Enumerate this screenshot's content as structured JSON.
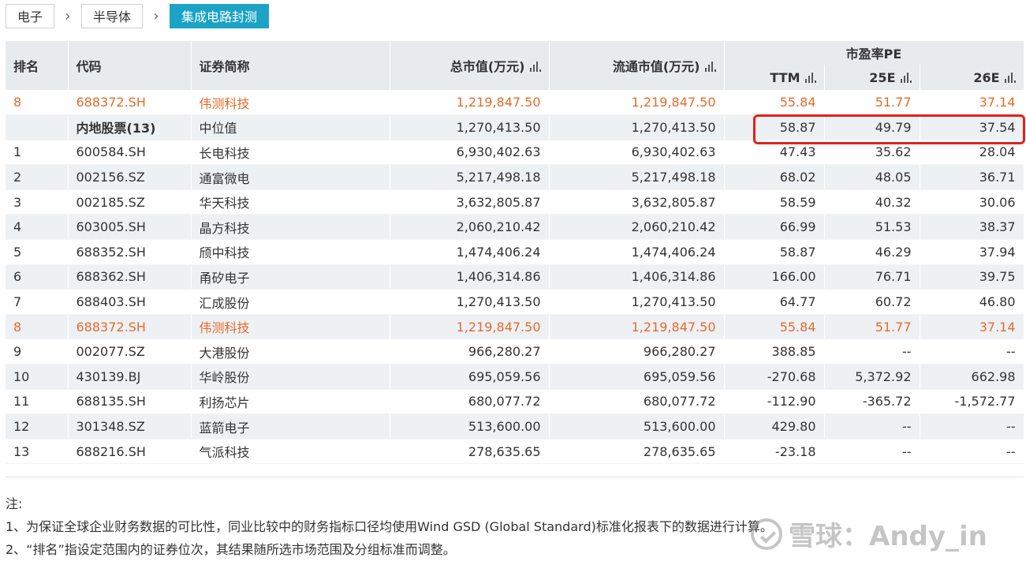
{
  "breadcrumb": {
    "level1": "电子",
    "level2": "半导体",
    "level3": "集成电路封测"
  },
  "table": {
    "headers": {
      "rank": "排名",
      "code": "代码",
      "name": "证券简称",
      "total_mv": "总市值(万元)",
      "float_mv": "流通市值(万元)",
      "pe_group": "市盈率PE",
      "ttm": "TTM",
      "e25": "25E",
      "e26": "26E"
    },
    "rows": [
      {
        "rank": "8",
        "code": "688372.SH",
        "name": "伟测科技",
        "total_mv": "1,219,847.50",
        "float_mv": "1,219,847.50",
        "ttm": "55.84",
        "e25": "51.77",
        "e26": "37.14"
      },
      {
        "rank": "",
        "code": "内地股票(13)",
        "name": "中位值",
        "total_mv": "1,270,413.50",
        "float_mv": "1,270,413.50",
        "ttm": "58.87",
        "e25": "49.79",
        "e26": "37.54"
      },
      {
        "rank": "1",
        "code": "600584.SH",
        "name": "长电科技",
        "total_mv": "6,930,402.63",
        "float_mv": "6,930,402.63",
        "ttm": "47.43",
        "e25": "35.62",
        "e26": "28.04"
      },
      {
        "rank": "2",
        "code": "002156.SZ",
        "name": "通富微电",
        "total_mv": "5,217,498.18",
        "float_mv": "5,217,498.18",
        "ttm": "68.02",
        "e25": "48.05",
        "e26": "36.71"
      },
      {
        "rank": "3",
        "code": "002185.SZ",
        "name": "华天科技",
        "total_mv": "3,632,805.87",
        "float_mv": "3,632,805.87",
        "ttm": "58.59",
        "e25": "40.32",
        "e26": "30.06"
      },
      {
        "rank": "4",
        "code": "603005.SH",
        "name": "晶方科技",
        "total_mv": "2,060,210.42",
        "float_mv": "2,060,210.42",
        "ttm": "66.99",
        "e25": "51.53",
        "e26": "38.37"
      },
      {
        "rank": "5",
        "code": "688352.SH",
        "name": "颀中科技",
        "total_mv": "1,474,406.24",
        "float_mv": "1,474,406.24",
        "ttm": "58.87",
        "e25": "46.29",
        "e26": "37.94"
      },
      {
        "rank": "6",
        "code": "688362.SH",
        "name": "甬矽电子",
        "total_mv": "1,406,314.86",
        "float_mv": "1,406,314.86",
        "ttm": "166.00",
        "e25": "76.71",
        "e26": "39.75"
      },
      {
        "rank": "7",
        "code": "688403.SH",
        "name": "汇成股份",
        "total_mv": "1,270,413.50",
        "float_mv": "1,270,413.50",
        "ttm": "64.77",
        "e25": "60.72",
        "e26": "46.80"
      },
      {
        "rank": "8",
        "code": "688372.SH",
        "name": "伟测科技",
        "total_mv": "1,219,847.50",
        "float_mv": "1,219,847.50",
        "ttm": "55.84",
        "e25": "51.77",
        "e26": "37.14"
      },
      {
        "rank": "9",
        "code": "002077.SZ",
        "name": "大港股份",
        "total_mv": "966,280.27",
        "float_mv": "966,280.27",
        "ttm": "388.85",
        "e25": "--",
        "e26": "--"
      },
      {
        "rank": "10",
        "code": "430139.BJ",
        "name": "华岭股份",
        "total_mv": "695,059.56",
        "float_mv": "695,059.56",
        "ttm": "-270.68",
        "e25": "5,372.92",
        "e26": "662.98"
      },
      {
        "rank": "11",
        "code": "688135.SH",
        "name": "利扬芯片",
        "total_mv": "680,077.72",
        "float_mv": "680,077.72",
        "ttm": "-112.90",
        "e25": "-365.72",
        "e26": "-1,572.77"
      },
      {
        "rank": "12",
        "code": "301348.SZ",
        "name": "蓝箭电子",
        "total_mv": "513,600.00",
        "float_mv": "513,600.00",
        "ttm": "429.80",
        "e25": "--",
        "e26": "--"
      },
      {
        "rank": "13",
        "code": "688216.SH",
        "name": "气派科技",
        "total_mv": "278,635.65",
        "float_mv": "278,635.65",
        "ttm": "-23.18",
        "e25": "--",
        "e26": "--"
      }
    ]
  },
  "notes": {
    "title": "注:",
    "line1": "1、为保证全球企业财务数据的可比性，同业比较中的财务指标口径均使用Wind GSD (Global Standard)标准化报表下的数据进行计算。",
    "line2": "2、“排名”指设定范围内的证券位次，其结果随所选市场范围及分组标准而调整。"
  },
  "watermark": {
    "text": "雪球：Andy_in",
    "icon": "xueqiu-logo-icon"
  },
  "colors": {
    "highlight": "#e56b2b",
    "accent": "#1ba3c6",
    "box": "#e5201c",
    "header_bg": "#e8ebee"
  }
}
